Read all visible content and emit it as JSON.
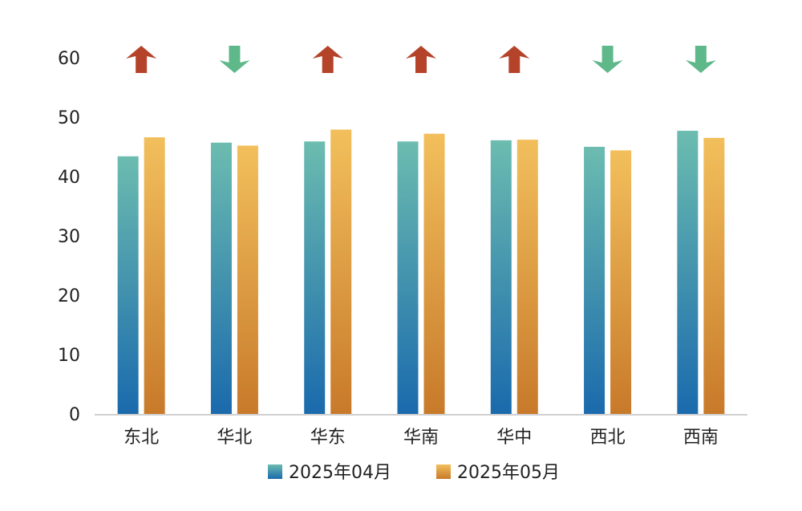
{
  "chart_data": {
    "type": "bar",
    "categories": [
      "东北",
      "华北",
      "华东",
      "华南",
      "华中",
      "西北",
      "西南"
    ],
    "series": [
      {
        "name": "2025年04月",
        "values": [
          43.4,
          45.7,
          45.9,
          45.9,
          46.1,
          45.0,
          47.7
        ]
      },
      {
        "name": "2025年05月",
        "values": [
          46.6,
          45.2,
          47.9,
          47.2,
          46.2,
          44.4,
          46.5
        ]
      }
    ],
    "trend": [
      "up",
      "down",
      "up",
      "up",
      "up",
      "down",
      "down"
    ],
    "ylim": [
      0,
      60
    ],
    "yticks": [
      0,
      10,
      20,
      30,
      40,
      50,
      60
    ],
    "grid": false,
    "legend_position": "bottom",
    "colors": {
      "series1_top": "#6cbcb0",
      "series1_bottom": "#1a6aad",
      "series2_top": "#f2bf5c",
      "series2_bottom": "#c87a2a",
      "arrow_up": "#b5432a",
      "arrow_down": "#5fb88a",
      "axis": "#d0d0d0"
    }
  }
}
